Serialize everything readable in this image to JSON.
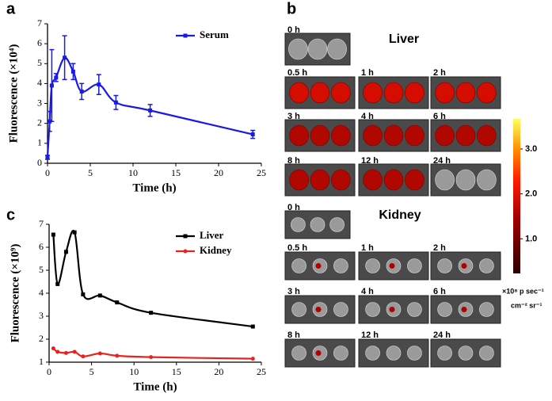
{
  "chart_data": [
    {
      "type": "line",
      "panel_label": "a",
      "x": [
        0,
        0.25,
        0.5,
        1,
        2,
        3,
        4,
        6,
        8,
        12,
        24
      ],
      "series": [
        {
          "name": "Serum",
          "color": "#1a1ae6",
          "values": [
            0.3,
            2.1,
            3.9,
            4.3,
            5.3,
            4.6,
            3.6,
            3.95,
            3.05,
            2.65,
            1.45
          ],
          "errors": [
            0.1,
            0.5,
            1.8,
            0.2,
            1.1,
            0.4,
            0.4,
            0.5,
            0.35,
            0.3,
            0.2
          ]
        }
      ],
      "xlabel": "Time (h)",
      "ylabel": "Fluorescence (×10⁴)",
      "xlim": [
        0,
        25
      ],
      "ylim": [
        0,
        7
      ],
      "xticks": [
        0,
        5,
        10,
        15,
        20,
        25
      ],
      "yticks": [
        0,
        1,
        2,
        3,
        4,
        5,
        6,
        7
      ],
      "legend": "upper right"
    },
    {
      "type": "line",
      "panel_label": "c",
      "x": [
        0.5,
        1,
        2,
        3,
        4,
        6,
        8,
        12,
        24
      ],
      "series": [
        {
          "name": "Liver",
          "color": "#000000",
          "values": [
            6.55,
            4.4,
            5.8,
            6.65,
            3.95,
            3.9,
            3.6,
            3.15,
            2.55
          ]
        },
        {
          "name": "Kidney",
          "color": "#e8231c",
          "values": [
            1.6,
            1.45,
            1.4,
            1.45,
            1.25,
            1.38,
            1.28,
            1.22,
            1.15
          ]
        }
      ],
      "xlabel": "Time (h)",
      "ylabel": "Fluorescence (×10⁹)",
      "xlim": [
        0,
        25
      ],
      "ylim": [
        1,
        7
      ],
      "xticks": [
        0,
        5,
        10,
        15,
        20,
        25
      ],
      "yticks": [
        1,
        2,
        3,
        4,
        5,
        6,
        7
      ],
      "legend": "upper right"
    }
  ],
  "panel_b": {
    "panel_label": "b",
    "groups": [
      {
        "title": "Liver",
        "labels": [
          "0 h",
          "0.5 h",
          "1 h",
          "2 h",
          "3 h",
          "4 h",
          "6 h",
          "8 h",
          "12 h",
          "24 h"
        ]
      },
      {
        "title": "Kidney",
        "labels": [
          "0 h",
          "0.5 h",
          "1 h",
          "2 h",
          "3 h",
          "4 h",
          "6 h",
          "8 h",
          "12 h",
          "24 h"
        ]
      }
    ],
    "colorbar": {
      "clim": [
        0.23,
        3.67
      ],
      "ticks": [
        {
          "value": 1,
          "label": "1.0"
        },
        {
          "value": 2,
          "label": "2.0"
        },
        {
          "value": 3,
          "label": "3.0"
        }
      ],
      "label": [
        "×10⁸ p sec⁻¹",
        "cm⁻² sr⁻¹"
      ]
    }
  }
}
